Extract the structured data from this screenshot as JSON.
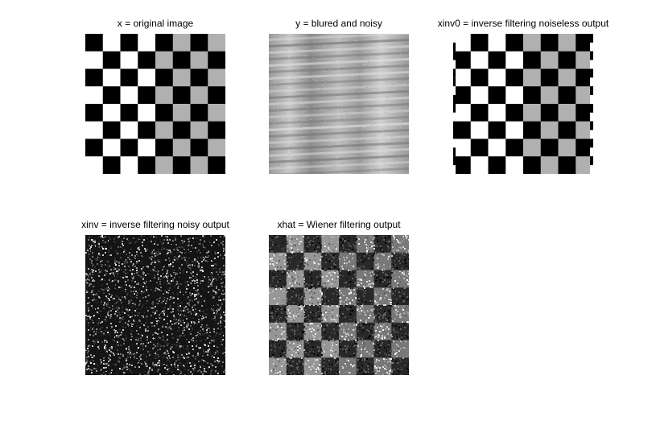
{
  "figure": {
    "panels": [
      {
        "title": "x = original image",
        "kind": "checker",
        "variant": "original"
      },
      {
        "title": "y = blured and noisy",
        "kind": "blurred"
      },
      {
        "title": "xinv0 = inverse filtering noiseless output",
        "kind": "checker",
        "variant": "inverse-noiseless"
      },
      {
        "title": "xinv = inverse filtering noisy output",
        "kind": "noise"
      },
      {
        "title": "xhat = Wiener filtering output",
        "kind": "wiener"
      }
    ]
  },
  "colors": {
    "black": "#000000",
    "white": "#ffffff",
    "gray": "#b0b0b0",
    "background": "#ffffff"
  }
}
